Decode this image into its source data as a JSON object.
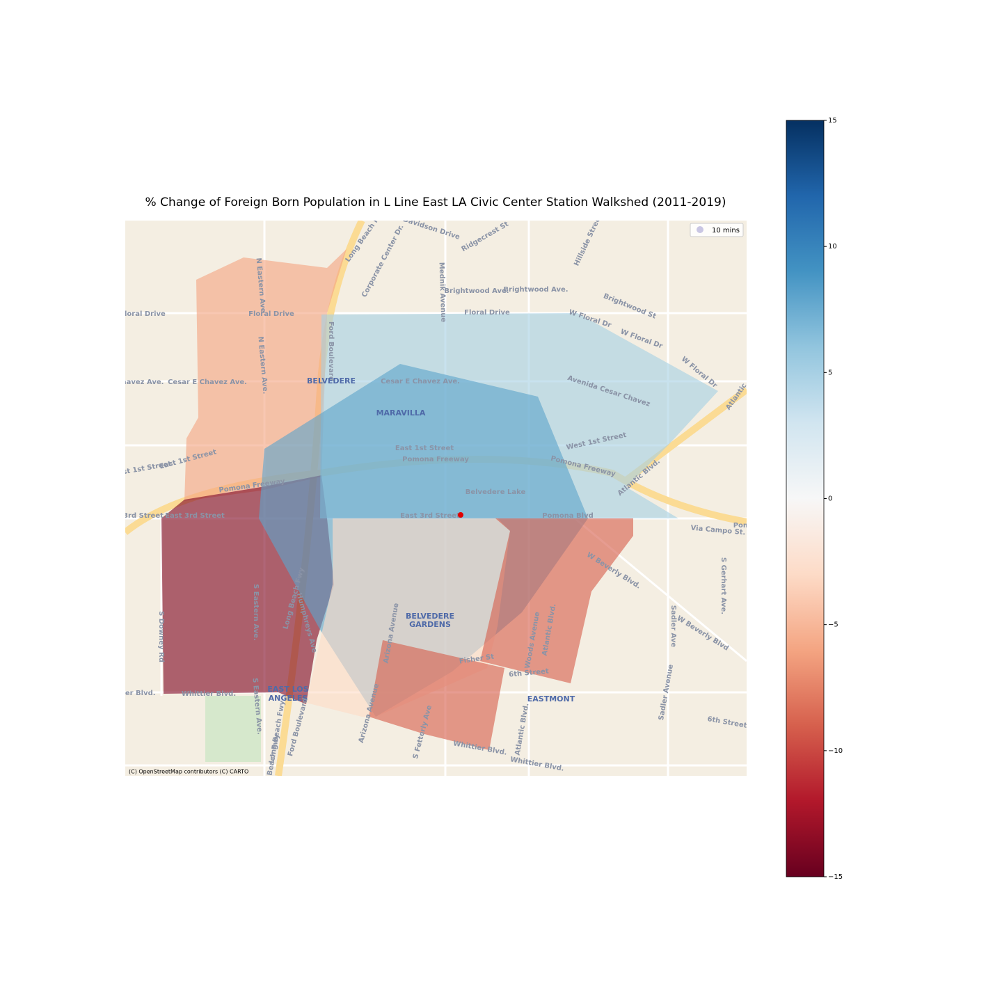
{
  "chart_data": {
    "type": "choropleth",
    "title": "% Change of Foreign Born Population in L Line East LA Civic Center Station Walkshed (2011-2019)",
    "colormap": "RdBu",
    "clim": [
      -15,
      15
    ],
    "cticks": [
      {
        "value": -15,
        "label": "−15"
      },
      {
        "value": -10,
        "label": "−10"
      },
      {
        "value": -5,
        "label": "−5"
      },
      0,
      5,
      10,
      15
    ],
    "values": [
      -6,
      -14,
      5,
      8,
      -3,
      -9,
      -9
    ],
    "legend": {
      "label": "10 mins",
      "corner": "upper right",
      "color": "#c9c6e3"
    },
    "attribution": "(C) OpenStreetMap contributors (C) CARTO",
    "map_labels": [
      "Davidson Drive",
      "Corporate Center Dr.",
      "Long Beach Fwy",
      "Ridgecrest St",
      "Hillside Street",
      "Mednik Avenue",
      "Brightwood Ave.",
      "Brightwood Ave.",
      "Brightwood St",
      "Floral Drive",
      "Floral Drive",
      "Floral Drive",
      "W Floral Dr",
      "W Floral Dr",
      "W Floral Dr",
      "N Eastern Ave",
      "N Eastern Ave.",
      "Ford Boulevard",
      "Cesar E Chavez Ave.",
      "Cesar E Chavez Ave.",
      "havez Ave.",
      "BELVEDERE",
      "MARAVILLA",
      "Avenida Cesar Chavez",
      "Atlantic",
      "East 1st Street",
      "West 1st Street",
      "ast 1st Street",
      "East 1st Street",
      "Pomona Freeway",
      "Pomona Freeway",
      "Pomona Freeway",
      "Atlantic Blvd.",
      "Belvedere Lake",
      "3rd Street",
      "East 3rd Street",
      "East 3rd Street",
      "Pomona Blvd",
      "Via Campo St.",
      "Pom",
      "W Beverly Blvd.",
      "S Gerhart Ave.",
      "Sadler Ave",
      "W Beverly Blvd",
      "S Eastern Ave.",
      "Long Beach Fwy",
      "Humphreys Ave",
      "S Downey Rd",
      "Arizona Avenue",
      "BELVEDERE",
      "GARDENS",
      "Woods Avenue",
      "Atlantic Blvd.",
      "Fisher St",
      "6th Street",
      "EASTMONT",
      "Sadler Avenue",
      "6th Street",
      "ier Blvd.",
      "Whittier Blvd.",
      "EAST LOS",
      "ANGELES",
      "S Eastern Ave.",
      "Long Beach Fwy",
      "Ford Boulevard",
      "Arizona Avenue",
      "S Fetterly Ave",
      "Whittier Blvd.",
      "Whittier Blvd.",
      "Atlantic Blvd.",
      "Long Beach Fwy"
    ]
  }
}
